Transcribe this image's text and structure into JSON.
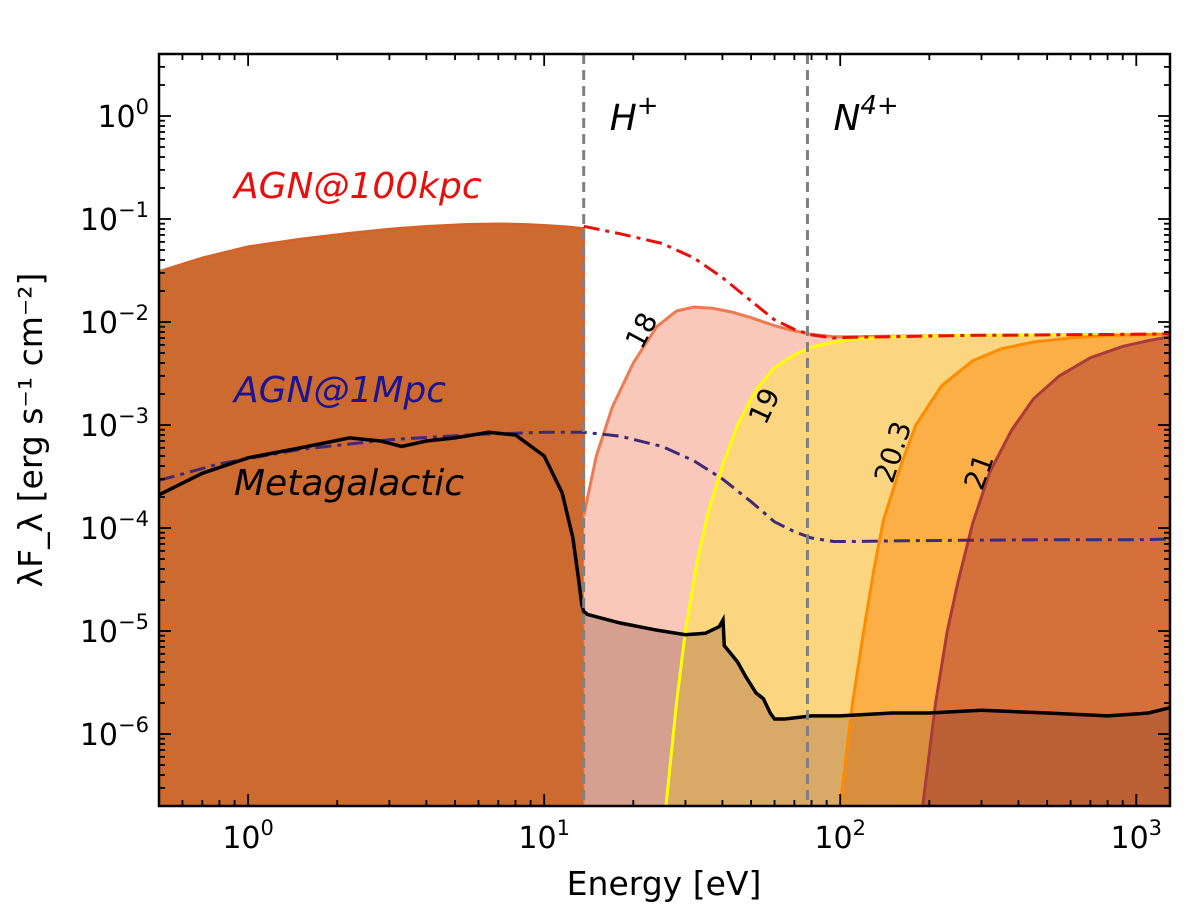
{
  "chart_data": {
    "type": "area",
    "xlabel": "Energy [eV]",
    "ylabel": "λF_λ [erg s⁻¹ cm⁻²]",
    "xscale": "log",
    "yscale": "log",
    "xlim": [
      0.5,
      1300
    ],
    "ylim": [
      2e-07,
      4
    ],
    "grid": false,
    "x_ticks": [
      {
        "value": 1,
        "base": "10",
        "exp": "0"
      },
      {
        "value": 10,
        "base": "10",
        "exp": "1"
      },
      {
        "value": 100,
        "base": "10",
        "exp": "2"
      },
      {
        "value": 1000,
        "base": "10",
        "exp": "3"
      }
    ],
    "y_ticks": [
      {
        "value": 1,
        "base": "10",
        "exp": "0"
      },
      {
        "value": 0.1,
        "base": "10",
        "exp": "−1"
      },
      {
        "value": 0.01,
        "base": "10",
        "exp": "−2"
      },
      {
        "value": 0.001,
        "base": "10",
        "exp": "−3"
      },
      {
        "value": 0.0001,
        "base": "10",
        "exp": "−4"
      },
      {
        "value": 1e-05,
        "base": "10",
        "exp": "−5"
      },
      {
        "value": 1e-06,
        "base": "10",
        "exp": "−6"
      }
    ],
    "vlines": [
      {
        "x": 13.6,
        "label": "H",
        "sup": "+"
      },
      {
        "x": 77.5,
        "label": "N",
        "sup": "4+"
      }
    ],
    "series": [
      {
        "name": "AGN@100kpc",
        "style": "dashdot",
        "color": "#e8100d",
        "x": [
          13.6,
          18,
          25,
          32,
          40,
          50,
          60,
          70,
          80,
          95,
          110,
          150,
          250,
          500,
          1000,
          1300
        ],
        "y": [
          0.085,
          0.072,
          0.058,
          0.042,
          0.027,
          0.016,
          0.0105,
          0.0085,
          0.0075,
          0.007,
          0.0071,
          0.0072,
          0.0074,
          0.0075,
          0.0076,
          0.0077
        ]
      },
      {
        "name": "AGN@1Mpc",
        "style": "dashdot",
        "color": "#3f2a73",
        "x": [
          0.5,
          0.8,
          1.5,
          3,
          6,
          10,
          13.6,
          18,
          25,
          32,
          40,
          50,
          60,
          70,
          80,
          95,
          110,
          150,
          250,
          500,
          1000,
          1300
        ],
        "y": [
          0.00029,
          0.00042,
          0.00058,
          0.00072,
          0.00081,
          0.00085,
          0.00085,
          0.00078,
          0.00062,
          0.00045,
          0.0003,
          0.00018,
          0.000115,
          9.2e-05,
          8e-05,
          7.4e-05,
          7.4e-05,
          7.5e-05,
          7.6e-05,
          7.7e-05,
          7.7e-05,
          7.8e-05
        ]
      },
      {
        "name": "Metagalactic",
        "style": "solid",
        "color": "#000000",
        "x": [
          0.5,
          0.7,
          1.0,
          1.5,
          2.2,
          2.8,
          3.3,
          4.0,
          5.0,
          6.5,
          8.0,
          10,
          11.5,
          12.5,
          13.1,
          13.4,
          13.6,
          14,
          18,
          24,
          30,
          35,
          39,
          40.2,
          40.6,
          42,
          45,
          48,
          52,
          55,
          58,
          60,
          65,
          80,
          100,
          150,
          200,
          300,
          500,
          800,
          1100,
          1300
        ],
        "y": [
          0.00021,
          0.00034,
          0.00048,
          0.0006,
          0.00075,
          0.0007,
          0.00062,
          0.0007,
          0.00075,
          0.00085,
          0.0008,
          0.0005,
          0.00022,
          8e-05,
          3e-05,
          1.8e-05,
          1.55e-05,
          1.45e-05,
          1.2e-05,
          1.02e-05,
          9.2e-06,
          9.5e-06,
          1.1e-05,
          1.28e-05,
          7.2e-06,
          6.4e-06,
          5e-06,
          3.6e-06,
          2.5e-06,
          2.2e-06,
          1.6e-06,
          1.4e-06,
          1.4e-06,
          1.5e-06,
          1.5e-06,
          1.6e-06,
          1.6e-06,
          1.7e-06,
          1.6e-06,
          1.5e-06,
          1.6e-06,
          1.8e-06
        ]
      },
      {
        "name": "18",
        "style": "filled",
        "color": "#ef7a50",
        "fill": "#f9c2b3",
        "x": [
          13.6,
          15,
          17,
          20,
          24,
          28,
          32,
          37,
          43,
          50,
          60,
          70,
          80,
          95,
          110,
          150,
          250,
          500,
          1000,
          1300
        ],
        "y": [
          0.00013,
          0.0005,
          0.0015,
          0.004,
          0.009,
          0.0128,
          0.014,
          0.0136,
          0.0125,
          0.011,
          0.0092,
          0.0082,
          0.0076,
          0.0072,
          0.0072,
          0.0073,
          0.0074,
          0.0075,
          0.0076,
          0.0077
        ]
      },
      {
        "name": "19",
        "style": "filled",
        "color": "#ffff00",
        "fill": "#fcd67a",
        "x": [
          25.8,
          28,
          30,
          33,
          36,
          40,
          45,
          52,
          60,
          70,
          80,
          95,
          110,
          150,
          250,
          500,
          1000,
          1300
        ],
        "y": [
          2e-07,
          2e-06,
          1e-05,
          5e-05,
          0.00015,
          0.0004,
          0.001,
          0.0022,
          0.0036,
          0.0048,
          0.0057,
          0.0064,
          0.0068,
          0.0072,
          0.0074,
          0.0075,
          0.0076,
          0.0077
        ]
      },
      {
        "name": "20.3",
        "style": "filled",
        "color": "#ff8c00",
        "fill": "#fcab3f",
        "x": [
          100,
          110,
          120,
          130,
          140,
          160,
          180,
          220,
          280,
          350,
          450,
          600,
          800,
          1000,
          1300
        ],
        "y": [
          2e-07,
          2e-06,
          1e-05,
          4e-05,
          0.00012,
          0.0004,
          0.001,
          0.0024,
          0.0042,
          0.0055,
          0.0064,
          0.007,
          0.0074,
          0.0075,
          0.0076
        ]
      },
      {
        "name": "21",
        "style": "filled",
        "color": "#a83c3c",
        "fill": "#d2693a",
        "x": [
          190,
          210,
          230,
          250,
          280,
          320,
          380,
          450,
          550,
          700,
          900,
          1100,
          1300
        ],
        "y": [
          2e-07,
          2e-06,
          1e-05,
          3e-05,
          0.00011,
          0.00035,
          0.0009,
          0.0018,
          0.003,
          0.0045,
          0.0058,
          0.0066,
          0.0072
        ]
      }
    ],
    "background_fill": {
      "color": "#cc6a30",
      "x": [
        0.5,
        0.7,
        1.0,
        1.5,
        2.2,
        3,
        4,
        5.5,
        7,
        8.5,
        10,
        12,
        13.6
      ],
      "y": [
        0.031,
        0.042,
        0.054,
        0.064,
        0.073,
        0.08,
        0.085,
        0.089,
        0.09,
        0.089,
        0.087,
        0.084,
        0.081
      ]
    },
    "annotations": [
      {
        "text": "AGN@100kpc",
        "color": "#e8100d"
      },
      {
        "text": "AGN@1Mpc",
        "color": "#1c1490"
      },
      {
        "text": "Metagalactic",
        "color": "#000000"
      }
    ]
  }
}
